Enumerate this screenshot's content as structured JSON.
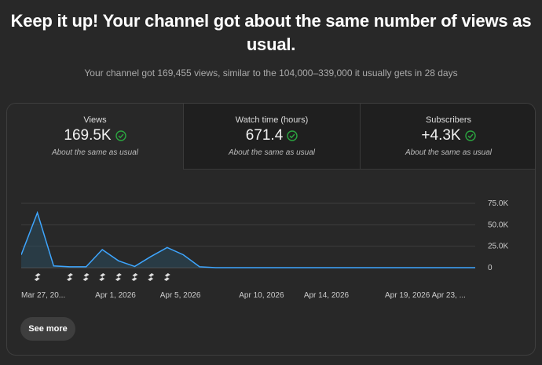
{
  "header": {
    "headline": "Keep it up! Your channel got about the same number of views as usual.",
    "subline": "Your channel got 169,455 views, similar to the 104,000–339,000 it usually gets in 28 days"
  },
  "tabs": [
    {
      "title": "Views",
      "value": "169.5K",
      "note": "About the same as usual"
    },
    {
      "title": "Watch time (hours)",
      "value": "671.4",
      "note": "About the same as usual"
    },
    {
      "title": "Subscribers",
      "value": "+4.3K",
      "note": "About the same as usual"
    }
  ],
  "colors": {
    "line": "#3ea6ff",
    "fill": "#2a4a5c",
    "check": "#2ba640"
  },
  "chart_data": {
    "type": "area",
    "y_ticks": [
      "75.0K",
      "50.0K",
      "25.0K",
      "0"
    ],
    "ylim": [
      0,
      75000
    ],
    "x_labels": [
      "Mar 27, 20...",
      "Apr 1, 2026",
      "Apr 5, 2026",
      "Apr 10, 2026",
      "Apr 14, 2026",
      "Apr 19, 2026",
      "Apr 23, ..."
    ],
    "x": [
      "Mar 26",
      "Mar 27",
      "Mar 28",
      "Mar 29",
      "Mar 30",
      "Mar 31",
      "Apr 1",
      "Apr 2",
      "Apr 3",
      "Apr 4",
      "Apr 5",
      "Apr 6",
      "Apr 7",
      "Apr 8",
      "Apr 9",
      "Apr 10",
      "Apr 11",
      "Apr 12",
      "Apr 13",
      "Apr 14",
      "Apr 15",
      "Apr 16",
      "Apr 17",
      "Apr 18",
      "Apr 19",
      "Apr 20",
      "Apr 21",
      "Apr 22",
      "Apr 23"
    ],
    "values": [
      15000,
      64000,
      2000,
      1000,
      1000,
      21000,
      8000,
      1500,
      13000,
      23500,
      15000,
      1000,
      0,
      0,
      0,
      0,
      0,
      0,
      0,
      0,
      0,
      0,
      0,
      0,
      0,
      0,
      0,
      0,
      0
    ],
    "shorts_markers": [
      "Mar 27",
      "Mar 29",
      "Mar 30",
      "Mar 31",
      "Apr 1",
      "Apr 2",
      "Apr 3",
      "Apr 4"
    ],
    "marker_icon": "shorts-icon"
  },
  "footer": {
    "see_more_label": "See more"
  }
}
